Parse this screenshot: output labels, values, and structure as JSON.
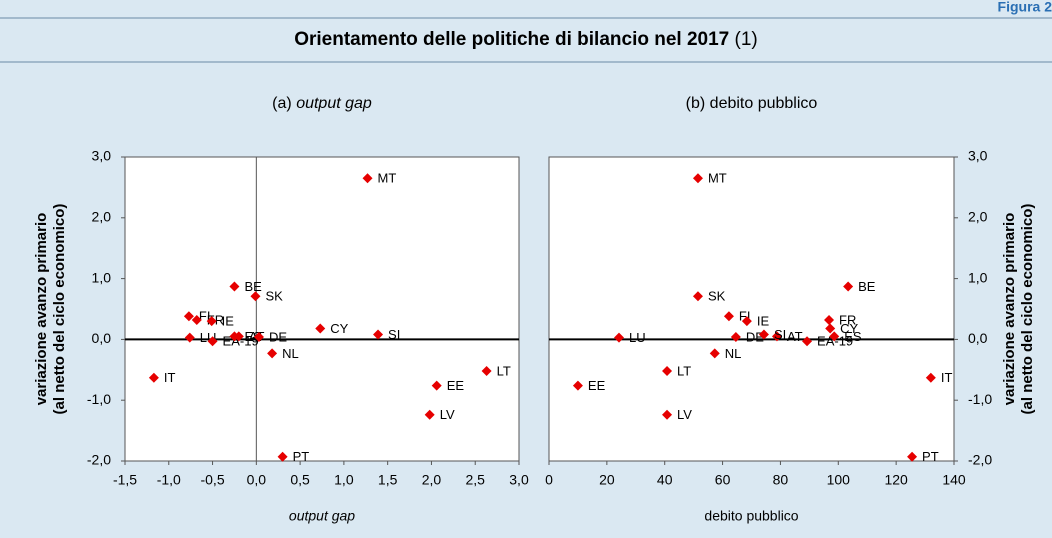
{
  "figure_label": "Figura 2",
  "title": "Orientamento delle politiche di bilancio nel 2017",
  "title_note": "(1)",
  "y_label": [
    "variazione avanzo primario",
    "(al netto del ciclo economico)"
  ],
  "chart_data": [
    {
      "type": "scatter",
      "subtitle_prefix": "(a)",
      "subtitle": "output gap",
      "x_label": "output gap",
      "color": "#e60000",
      "yaxis_side": "left",
      "zero_vline": true,
      "labels": [
        "MT",
        "BE",
        "SK",
        "FI",
        "FR",
        "IE",
        "LU",
        "EA-19",
        "ES",
        "AT",
        "DE",
        "CY",
        "SI",
        "NL",
        "IT",
        "EE",
        "LT",
        "LV",
        "PT"
      ],
      "x": [
        1.27,
        -0.25,
        -0.01,
        -0.77,
        -0.68,
        -0.51,
        -0.76,
        -0.5,
        -0.25,
        -0.2,
        0.03,
        0.73,
        1.39,
        0.18,
        -1.17,
        2.06,
        2.63,
        1.98,
        0.3
      ],
      "y": [
        2.65,
        0.87,
        0.71,
        0.38,
        0.32,
        0.3,
        0.03,
        -0.03,
        0.05,
        0.05,
        0.04,
        0.18,
        0.08,
        -0.23,
        -0.63,
        -0.76,
        -0.52,
        -1.24,
        -1.93
      ],
      "xlim": [
        -1.5,
        3.0
      ],
      "xticks": [
        {
          "value": -1.5,
          "label": "-1,5"
        },
        {
          "value": -1,
          "label": "-1,0"
        },
        {
          "value": -0.5,
          "label": "-0,5"
        },
        {
          "value": 0,
          "label": "0,0"
        },
        {
          "value": 0.5,
          "label": "0,5"
        },
        {
          "value": 1,
          "label": "1,0"
        },
        {
          "value": 1.5,
          "label": "1,5"
        },
        {
          "value": 2,
          "label": "2,0"
        },
        {
          "value": 2.5,
          "label": "2,5"
        },
        {
          "value": 3,
          "label": "3,0"
        }
      ],
      "ylim": [
        -2.0,
        3.0
      ],
      "yticks": [
        {
          "value": 3,
          "label": "3,0"
        },
        {
          "value": 2,
          "label": "2,0"
        },
        {
          "value": 1,
          "label": "1,0"
        },
        {
          "value": 0,
          "label": "0,0"
        },
        {
          "value": -1,
          "label": "-1,0"
        },
        {
          "value": -2,
          "label": "-2,0"
        }
      ]
    },
    {
      "type": "scatter",
      "subtitle": "(b) debito pubblico",
      "x_label": "debito pubblico",
      "color": "#e60000",
      "yaxis_side": "right",
      "zero_vline": false,
      "labels": [
        "MT",
        "BE",
        "SK",
        "FI",
        "FR",
        "IE",
        "LU",
        "EA-19",
        "ES",
        "AT",
        "DE",
        "CY",
        "SI",
        "NL",
        "IT",
        "EE",
        "LT",
        "LV",
        "PT"
      ],
      "x": [
        51.5,
        103.4,
        51.5,
        62.2,
        96.8,
        68.4,
        24.2,
        89.2,
        98.6,
        78.8,
        64.6,
        97.2,
        74.3,
        57.3,
        132,
        10,
        40.8,
        40.8,
        125.5
      ],
      "y": [
        2.65,
        0.87,
        0.71,
        0.38,
        0.32,
        0.3,
        0.03,
        -0.03,
        0.05,
        0.05,
        0.04,
        0.18,
        0.08,
        -0.23,
        -0.63,
        -0.76,
        -0.52,
        -1.24,
        -1.93
      ],
      "xlim": [
        0,
        140
      ],
      "xticks": [
        0,
        20,
        40,
        60,
        80,
        100,
        120,
        140
      ],
      "ylim": [
        -2.0,
        3.0
      ],
      "yticks": [
        {
          "value": 3,
          "label": "3,0"
        },
        {
          "value": 2,
          "label": "2,0"
        },
        {
          "value": 1,
          "label": "1,0"
        },
        {
          "value": 0,
          "label": "0,0"
        },
        {
          "value": -1,
          "label": "-1,0"
        },
        {
          "value": -2,
          "label": "-2,0"
        }
      ]
    }
  ]
}
